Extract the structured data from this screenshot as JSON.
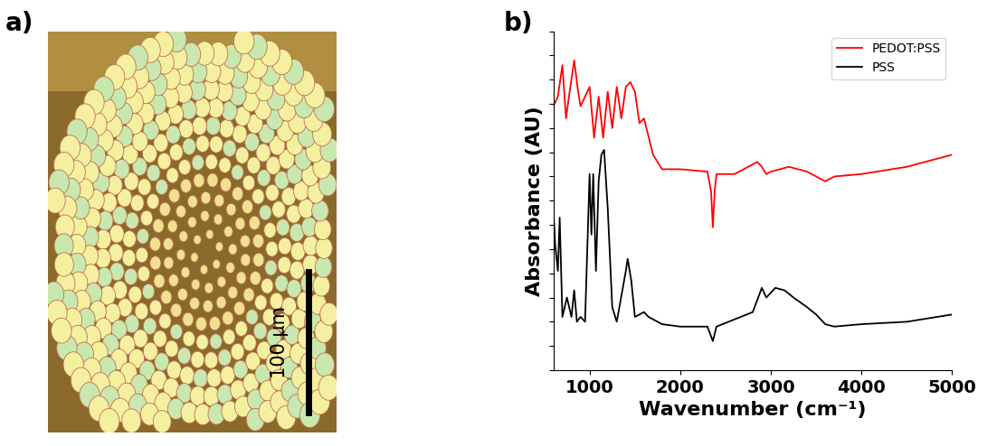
{
  "chart_data": [
    {
      "type": "image",
      "title": "a)",
      "annotations": [
        "100 µm"
      ]
    },
    {
      "type": "line",
      "title": "b)",
      "x_label": "Wavenumber (cm⁻¹)",
      "y_label": "Absorbance (AU)",
      "xlim": [
        600,
        5000
      ],
      "xticks": [
        1000,
        2000,
        3000,
        4000,
        5000
      ],
      "ylim": [
        0,
        14
      ],
      "yticks": [
        0,
        1,
        2,
        3,
        4,
        5,
        6,
        7,
        8,
        9,
        10,
        11,
        12,
        13,
        14
      ],
      "tick_labels": "x",
      "legend": "upper right",
      "series": [
        {
          "name": "PEDOT:PSS",
          "color": "#ff0000",
          "x": [
            600,
            650,
            700,
            740,
            780,
            830,
            870,
            900,
            950,
            1000,
            1050,
            1100,
            1150,
            1200,
            1250,
            1300,
            1350,
            1400,
            1450,
            1500,
            1550,
            1600,
            1700,
            1800,
            2000,
            2300,
            2340,
            2360,
            2380,
            2400,
            2600,
            2850,
            2900,
            2950,
            3000,
            3200,
            3400,
            3600,
            3700,
            4000,
            4500,
            5000
          ],
          "values": [
            10.9,
            11.3,
            12.6,
            10.4,
            11.5,
            12.8,
            11.6,
            10.9,
            11.3,
            11.7,
            9.6,
            11.3,
            9.6,
            11.5,
            10.0,
            11.7,
            10.4,
            11.7,
            11.9,
            11.5,
            10.2,
            10.4,
            8.9,
            8.3,
            8.3,
            8.2,
            7.4,
            5.9,
            7.4,
            8.1,
            8.1,
            8.6,
            8.4,
            8.1,
            8.2,
            8.4,
            8.2,
            7.8,
            8.0,
            8.1,
            8.4,
            8.9
          ]
        },
        {
          "name": "PSS",
          "color": "#000000",
          "x": [
            600,
            620,
            650,
            670,
            700,
            750,
            800,
            830,
            860,
            900,
            950,
            1000,
            1020,
            1040,
            1070,
            1100,
            1130,
            1160,
            1200,
            1250,
            1300,
            1400,
            1420,
            1460,
            1500,
            1600,
            1650,
            1800,
            2000,
            2300,
            2360,
            2400,
            2800,
            2900,
            2950,
            3050,
            3150,
            3250,
            3400,
            3500,
            3600,
            3700,
            4000,
            4500,
            5000
          ],
          "values": [
            6.7,
            5.2,
            4.1,
            6.3,
            2.2,
            3.0,
            2.2,
            3.3,
            2.0,
            2.2,
            2.0,
            8.1,
            5.6,
            8.1,
            4.1,
            7.8,
            8.9,
            9.1,
            6.7,
            2.6,
            2.0,
            4.1,
            4.6,
            3.7,
            2.2,
            2.4,
            2.2,
            1.9,
            1.8,
            1.8,
            1.2,
            1.8,
            2.4,
            3.4,
            3.0,
            3.4,
            3.3,
            3.0,
            2.6,
            2.3,
            1.9,
            1.8,
            1.9,
            2.0,
            2.3
          ]
        }
      ]
    }
  ]
}
